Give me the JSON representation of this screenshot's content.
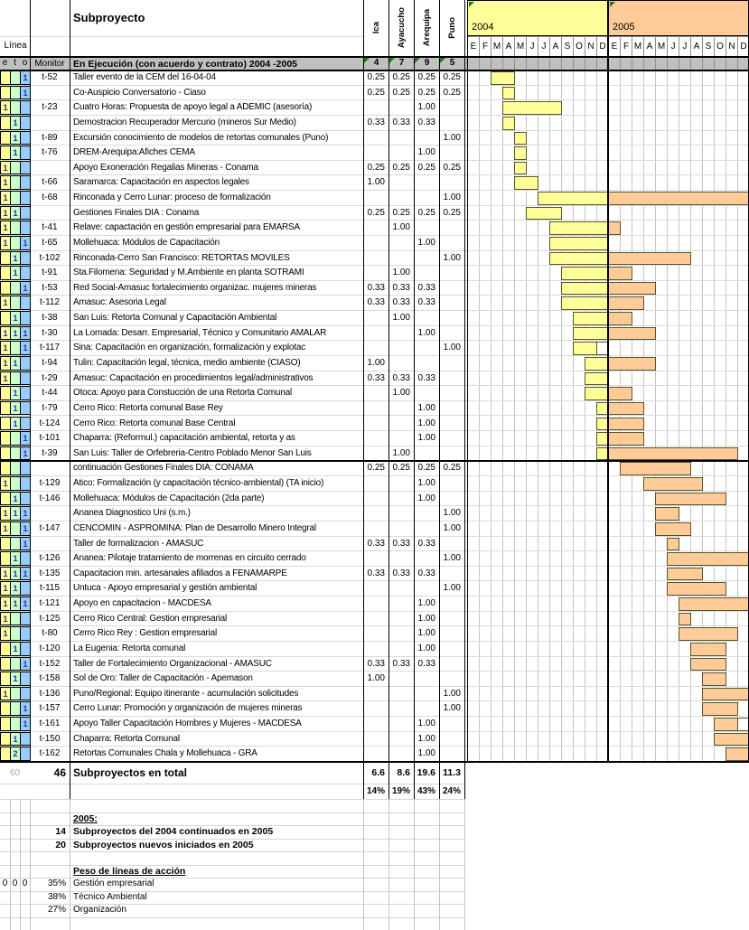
{
  "header": {
    "linea_label": "Línea",
    "eto_labels": [
      "e",
      "t",
      "o"
    ],
    "monitor_label": "Monitor",
    "subproject_label": "Subproyecto",
    "section_title": "En Ejecución (con acuerdo y contrato) 2004 -2005",
    "regions": [
      "Ica",
      "Ayacucho",
      "Arequipa",
      "Puno"
    ],
    "region_counts": [
      "4",
      "7",
      "9",
      "5"
    ],
    "years": [
      {
        "label": "2004",
        "color": "#FFFF99"
      },
      {
        "label": "2005",
        "color": "#FFCC99"
      }
    ],
    "months": [
      "E",
      "F",
      "M",
      "A",
      "M",
      "J",
      "J",
      "A",
      "S",
      "O",
      "N",
      "D"
    ]
  },
  "rows": [
    {
      "e": "",
      "t": "",
      "o": "1",
      "monitor": "t-52",
      "name": "Taller evento de la CEM del 16-04-04",
      "values": [
        "0.25",
        "0.25",
        "0.25",
        "0.25"
      ],
      "bars": [
        [
          3,
          4,
          "y"
        ]
      ]
    },
    {
      "e": "",
      "t": "",
      "o": "1",
      "monitor": "",
      "name": "Co-Auspicio Conversatorio - Ciaso",
      "values": [
        "0.25",
        "0.25",
        "0.25",
        "0.25"
      ],
      "bars": [
        [
          4,
          4,
          "y"
        ]
      ]
    },
    {
      "e": "1",
      "t": "",
      "o": "",
      "monitor": "t-23",
      "name": "Cuatro Horas: Propuesta de apoyo legal a ADEMIC (asesoría)",
      "values": [
        "",
        "",
        "1.00",
        ""
      ],
      "bars": [
        [
          4,
          8,
          "y"
        ]
      ]
    },
    {
      "e": "",
      "t": "1",
      "o": "",
      "monitor": "",
      "name": "Demostracion Recuperador Mercurio (mineros Sur Medio)",
      "values": [
        "0.33",
        "0.33",
        "0.33",
        ""
      ],
      "bars": [
        [
          4,
          4,
          "y"
        ]
      ]
    },
    {
      "e": "",
      "t": "1",
      "o": "",
      "monitor": "t-89",
      "name": "Excursión conocimiento de modelos de retortas comunales (Puno)",
      "values": [
        "",
        "",
        "",
        "1.00"
      ],
      "bars": [
        [
          5,
          5,
          "y"
        ]
      ]
    },
    {
      "e": "",
      "t": "1",
      "o": "",
      "monitor": "t-76",
      "name": "DREM-Arequipa:Afiches CEMA",
      "values": [
        "",
        "",
        "1.00",
        ""
      ],
      "bars": [
        [
          5,
          5,
          "y"
        ]
      ]
    },
    {
      "e": "1",
      "t": "",
      "o": "",
      "monitor": "",
      "name": "Apoyo Exoneración Regalias Mineras - Conama",
      "values": [
        "0.25",
        "0.25",
        "0.25",
        "0.25"
      ],
      "bars": [
        [
          5,
          5,
          "y"
        ]
      ]
    },
    {
      "e": "1",
      "t": "",
      "o": "",
      "monitor": "t-66",
      "name": "Saramarca: Capacitación en aspectos legales",
      "values": [
        "1.00",
        "",
        "",
        ""
      ],
      "bars": [
        [
          5,
          6,
          "y"
        ]
      ]
    },
    {
      "e": "1",
      "t": "",
      "o": "",
      "monitor": "t-68",
      "name": "Rinconada y Cerro Lunar: proceso de formalización",
      "values": [
        "",
        "",
        "",
        "1.00"
      ],
      "bars": [
        [
          7,
          12,
          "y"
        ],
        [
          13,
          24,
          "o"
        ]
      ]
    },
    {
      "e": "1",
      "t": "1",
      "o": "",
      "monitor": "",
      "name": "Gestiones Finales DIA : Conama",
      "values": [
        "0.25",
        "0.25",
        "0.25",
        "0.25"
      ],
      "bars": [
        [
          6,
          8,
          "y"
        ]
      ]
    },
    {
      "e": "1",
      "t": "",
      "o": "",
      "monitor": "t-41",
      "name": "Relave: capactación en gestión empresarial para EMARSA",
      "values": [
        "",
        "1.00",
        "",
        ""
      ],
      "bars": [
        [
          8,
          12,
          "y"
        ],
        [
          13,
          13,
          "o"
        ]
      ]
    },
    {
      "e": "1",
      "t": "",
      "o": "1",
      "monitor": "t-65",
      "name": "Mollehuaca: Módulos de Capacitación",
      "values": [
        "",
        "",
        "1.00",
        ""
      ],
      "bars": [
        [
          8,
          12,
          "y"
        ]
      ]
    },
    {
      "e": "",
      "t": "1",
      "o": "",
      "monitor": "t-102",
      "name": "Rinconada-Cerro San Francisco: RETORTAS MOVILES",
      "values": [
        "",
        "",
        "",
        "1.00"
      ],
      "bars": [
        [
          8,
          12,
          "y"
        ],
        [
          13,
          19,
          "o"
        ]
      ]
    },
    {
      "e": "",
      "t": "1",
      "o": "",
      "monitor": "t-91",
      "name": "Sta.Filomena: Seguridad y M.Ambiente en planta SOTRAMI",
      "values": [
        "",
        "1.00",
        "",
        ""
      ],
      "bars": [
        [
          9,
          12,
          "y"
        ],
        [
          13,
          14,
          "o"
        ]
      ]
    },
    {
      "e": "",
      "t": "",
      "o": "1",
      "monitor": "t-53",
      "name": "Red Social-Amasuc fortalecimiento organizac. mujeres mineras",
      "values": [
        "0.33",
        "0.33",
        "0.33",
        ""
      ],
      "bars": [
        [
          9,
          12,
          "y"
        ],
        [
          13,
          16,
          "o"
        ]
      ]
    },
    {
      "e": "1",
      "t": "",
      "o": "",
      "monitor": "t-112",
      "name": "Amasuc: Asesoria Legal",
      "values": [
        "0.33",
        "0.33",
        "0.33",
        ""
      ],
      "bars": [
        [
          9,
          12,
          "y"
        ],
        [
          13,
          15,
          "o"
        ]
      ]
    },
    {
      "e": "",
      "t": "1",
      "o": "",
      "monitor": "t-38",
      "name": "San Luis: Retorta Comunal y Capacitación Ambiental",
      "values": [
        "",
        "1.00",
        "",
        ""
      ],
      "bars": [
        [
          10,
          12,
          "y"
        ],
        [
          13,
          14,
          "o"
        ]
      ]
    },
    {
      "e": "1",
      "t": "1",
      "o": "1",
      "monitor": "t-30",
      "name": "La Lomada: Desarr. Empresarial, Técnico y Comunitario AMALAR",
      "values": [
        "",
        "",
        "1.00",
        ""
      ],
      "bars": [
        [
          10,
          12,
          "y"
        ],
        [
          13,
          16,
          "o"
        ]
      ]
    },
    {
      "e": "1",
      "t": "",
      "o": "1",
      "monitor": "t-117",
      "name": "Sina: Capacitación en organización, formalización y explotac",
      "values": [
        "",
        "",
        "",
        "1.00"
      ],
      "bars": [
        [
          10,
          11,
          "y"
        ],
        [
          12,
          12,
          "w"
        ]
      ]
    },
    {
      "e": "1",
      "t": "1",
      "o": "",
      "monitor": "t-94",
      "name": "Tulin: Capacitación legal, técnica, medio ambiente (CIASO)",
      "values": [
        "1.00",
        "",
        "",
        ""
      ],
      "bars": [
        [
          11,
          12,
          "y"
        ],
        [
          13,
          16,
          "o"
        ]
      ]
    },
    {
      "e": "1",
      "t": "",
      "o": "",
      "monitor": "t-29",
      "name": "Amasuc: Capacitación en procedimientos legal/administrativos",
      "values": [
        "0.33",
        "0.33",
        "0.33",
        ""
      ],
      "bars": [
        [
          11,
          12,
          "y"
        ]
      ]
    },
    {
      "e": "",
      "t": "1",
      "o": "",
      "monitor": "t-44",
      "name": "Otoca: Apoyo para Constucción de una Retorta Comunal",
      "values": [
        "",
        "1.00",
        "",
        ""
      ],
      "bars": [
        [
          11,
          12,
          "y"
        ],
        [
          13,
          14,
          "o"
        ]
      ]
    },
    {
      "e": "",
      "t": "1",
      "o": "",
      "monitor": "t-79",
      "name": "Cerro Rico: Retorta comunal Base Rey",
      "values": [
        "",
        "",
        "1.00",
        ""
      ],
      "bars": [
        [
          12,
          12,
          "y"
        ],
        [
          13,
          15,
          "o"
        ]
      ]
    },
    {
      "e": "",
      "t": "1",
      "o": "",
      "monitor": "t-124",
      "name": "Cerro Rico: Retorta comunal Base Central",
      "values": [
        "",
        "",
        "1.00",
        ""
      ],
      "bars": [
        [
          12,
          12,
          "y"
        ],
        [
          13,
          15,
          "o"
        ]
      ]
    },
    {
      "e": "",
      "t": "",
      "o": "1",
      "monitor": "t-101",
      "name": "Chaparra: (Reformul.) capacitación ambiental, retorta y as",
      "values": [
        "",
        "",
        "1.00",
        ""
      ],
      "bars": [
        [
          12,
          12,
          "y"
        ],
        [
          13,
          15,
          "o"
        ]
      ]
    },
    {
      "e": "",
      "t": "",
      "o": "1",
      "monitor": "t-39",
      "name": "San Luis: Taller de Orfebreria-Centro Poblado Menor San Luis",
      "values": [
        "",
        "1.00",
        "",
        ""
      ],
      "bars": [
        [
          12,
          12,
          "y"
        ],
        [
          13,
          23,
          "o"
        ]
      ]
    },
    {
      "e": "",
      "t": "",
      "o": "",
      "monitor": "",
      "name": "continuación Gestiones Finales DIA: CONAMA",
      "values": [
        "0.25",
        "0.25",
        "0.25",
        "0.25"
      ],
      "bars": [
        [
          14,
          19,
          "o"
        ]
      ]
    },
    {
      "e": "1",
      "t": "",
      "o": "",
      "monitor": "t-129",
      "name": "Atico: Formalización (y capacitación técnico-ambiental) (TA inicio)",
      "values": [
        "",
        "",
        "1.00",
        ""
      ],
      "bars": [
        [
          16,
          20,
          "o"
        ]
      ]
    },
    {
      "e": "",
      "t": "1",
      "o": "",
      "monitor": "t-146",
      "name": "Mollehuaca: Módulos de Capacitación (2da parte)",
      "values": [
        "",
        "",
        "1.00",
        ""
      ],
      "bars": [
        [
          17,
          22,
          "o"
        ]
      ]
    },
    {
      "e": "1",
      "t": "1",
      "o": "1",
      "monitor": "",
      "name": "Ananea Diagnostico Uni (s.m.)",
      "values": [
        "",
        "",
        "",
        "1.00"
      ],
      "bars": [
        [
          17,
          18,
          "o"
        ]
      ]
    },
    {
      "e": "1",
      "t": "",
      "o": "1",
      "monitor": "t-147",
      "name": "CENCOMIN - ASPROMINA: Plan de Desarrollo Minero Integral",
      "values": [
        "",
        "",
        "",
        "1.00"
      ],
      "bars": [
        [
          17,
          19,
          "o"
        ]
      ]
    },
    {
      "e": "",
      "t": "",
      "o": "1",
      "monitor": "",
      "name": "Taller de formalizacion - AMASUC",
      "values": [
        "0.33",
        "0.33",
        "0.33",
        ""
      ],
      "bars": [
        [
          18,
          18,
          "o"
        ]
      ]
    },
    {
      "e": "",
      "t": "1",
      "o": "",
      "monitor": "t-126",
      "name": "Ananea: Pilotaje tratamiento de morrenas en circuito cerrado",
      "values": [
        "",
        "",
        "",
        "1.00"
      ],
      "bars": [
        [
          18,
          24,
          "o"
        ]
      ]
    },
    {
      "e": "1",
      "t": "1",
      "o": "1",
      "monitor": "t-135",
      "name": "Capacitacion min. artesanales afiliados a FENAMARPE",
      "values": [
        "0.33",
        "0.33",
        "0.33",
        ""
      ],
      "bars": [
        [
          18,
          20,
          "o"
        ]
      ]
    },
    {
      "e": "1",
      "t": "1",
      "o": "",
      "monitor": "t-115",
      "name": "Untuca - Apoyo empresarial y gestión ambiental",
      "values": [
        "",
        "",
        "",
        "1.00"
      ],
      "bars": [
        [
          18,
          22,
          "o"
        ]
      ]
    },
    {
      "e": "1",
      "t": "1",
      "o": "1",
      "monitor": "t-121",
      "name": "Apoyo en capacitacion - MACDESA",
      "values": [
        "",
        "",
        "1.00",
        ""
      ],
      "bars": [
        [
          19,
          24,
          "o"
        ]
      ]
    },
    {
      "e": "1",
      "t": "",
      "o": "",
      "monitor": "t-125",
      "name": "Cerro Rico Central: Gestion empresarial",
      "values": [
        "",
        "",
        "1.00",
        ""
      ],
      "bars": [
        [
          19,
          19,
          "o"
        ]
      ]
    },
    {
      "e": "1",
      "t": "",
      "o": "",
      "monitor": "t-80",
      "name": "Cerro Rico Rey : Gestion empresarial",
      "values": [
        "",
        "",
        "1.00",
        ""
      ],
      "bars": [
        [
          19,
          23,
          "o"
        ]
      ]
    },
    {
      "e": "",
      "t": "1",
      "o": "",
      "monitor": "t-120",
      "name": "La Eugenia: Retorta comunal",
      "values": [
        "",
        "",
        "1.00",
        ""
      ],
      "bars": [
        [
          20,
          22,
          "o"
        ]
      ]
    },
    {
      "e": "",
      "t": "",
      "o": "1",
      "monitor": "t-152",
      "name": "Taller de Fortalecimiento Organizacional - AMASUC",
      "values": [
        "0.33",
        "0.33",
        "0.33",
        ""
      ],
      "bars": [
        [
          20,
          22,
          "o"
        ]
      ]
    },
    {
      "e": "",
      "t": "1",
      "o": "",
      "monitor": "t-158",
      "name": "Sol de Oro: Taller de Capacitación - Apemason",
      "values": [
        "1.00",
        "",
        "",
        ""
      ],
      "bars": [
        [
          21,
          22,
          "o"
        ]
      ]
    },
    {
      "e": "1",
      "t": "",
      "o": "",
      "monitor": "t-136",
      "name": "Puno/Regional: Equipo itinerante - acumulación solicitudes",
      "values": [
        "",
        "",
        "",
        "1.00"
      ],
      "bars": [
        [
          21,
          24,
          "o"
        ]
      ]
    },
    {
      "e": "",
      "t": "",
      "o": "1",
      "monitor": "t-157",
      "name": "Cerro Lunar: Promoción y organización de mujeres mineras",
      "values": [
        "",
        "",
        "",
        "1.00"
      ],
      "bars": [
        [
          21,
          23,
          "o"
        ]
      ]
    },
    {
      "e": "",
      "t": "",
      "o": "1",
      "monitor": "t-161",
      "name": "Apoyo Taller Capacitación Hombres y Mujeres - MACDESA",
      "values": [
        "",
        "",
        "1.00",
        ""
      ],
      "bars": [
        [
          22,
          23,
          "o"
        ],
        [
          24,
          24,
          "w"
        ]
      ]
    },
    {
      "e": "",
      "t": "1",
      "o": "",
      "monitor": "t-150",
      "name": "Chaparra: Retorta Comunal",
      "values": [
        "",
        "",
        "1.00",
        ""
      ],
      "bars": [
        [
          22,
          24,
          "o"
        ]
      ]
    },
    {
      "e": "",
      "t": "2",
      "o": "",
      "monitor": "t-162",
      "name": "Retortas Comunales Chala y Mollehuaca - GRA",
      "values": [
        "",
        "",
        "1.00",
        ""
      ],
      "bars": [
        [
          23,
          24,
          "o"
        ]
      ]
    }
  ],
  "totals": {
    "hidden_count": "60",
    "count": "46",
    "label": "Subproyectos en total",
    "values": [
      "6.6",
      "8.6",
      "19.6",
      "11.3"
    ],
    "percents": [
      "14%",
      "19%",
      "43%",
      "24%"
    ]
  },
  "footer": {
    "year_heading": "2005:",
    "summary": [
      {
        "num": "14",
        "text": "Subproyectos del 2004 continuados en 2005"
      },
      {
        "num": "20",
        "text": "Subproyectos nuevos iniciados en 2005"
      }
    ],
    "weights_heading": "Peso de líneas de acción",
    "weights_eto": [
      "0",
      "0",
      "0"
    ],
    "weights": [
      {
        "pct": "35%",
        "label": "Gestión empresarial"
      },
      {
        "pct": "38%",
        "label": "Técnico Ambiental"
      },
      {
        "pct": "27%",
        "label": "Organización"
      }
    ]
  },
  "colors": {
    "yellow": "#FFFF99",
    "orange": "#FFCC99",
    "eto_e": "#FFFF99",
    "eto_t": "#CCFFCC",
    "eto_o": "#99CCFF",
    "gray_header": "#C0C0C0",
    "marker_green": "#1F7A1F"
  }
}
